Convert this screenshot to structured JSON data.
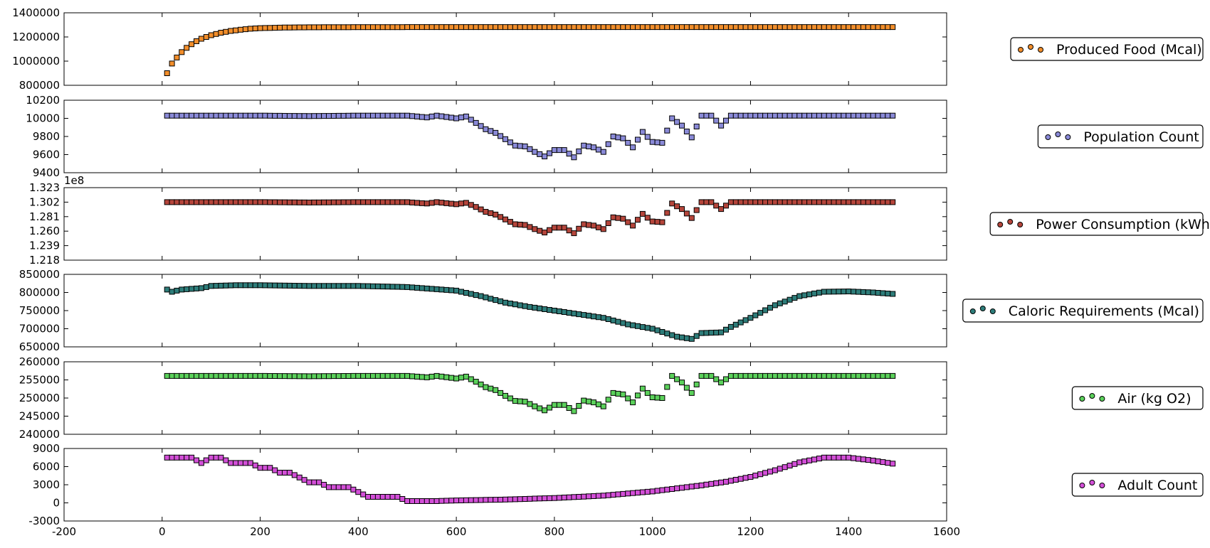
{
  "chart_data": {
    "type": "scatter",
    "xlim": [
      -200,
      1600
    ],
    "xticks": [
      "-200",
      "0",
      "200",
      "400",
      "600",
      "800",
      "1000",
      "1200",
      "1400",
      "1600"
    ],
    "xtick_values": [
      -200,
      0,
      200,
      400,
      600,
      800,
      1000,
      1200,
      1400,
      1600
    ],
    "grid": false,
    "legend_placement": "right",
    "panels": [
      {
        "name": "Produced Food (Mcal)",
        "color": "#f28e2b",
        "ylim": [
          800000,
          1400000
        ],
        "yticks": [
          "800000",
          "1000000",
          "1200000",
          "1400000"
        ],
        "ytick_values": [
          800000,
          1000000,
          1200000,
          1400000
        ],
        "offset_label": "",
        "points": [
          [
            10,
            900000
          ],
          [
            20,
            980000
          ],
          [
            30,
            1030000
          ],
          [
            40,
            1075000
          ],
          [
            50,
            1110000
          ],
          [
            60,
            1140000
          ],
          [
            70,
            1165000
          ],
          [
            80,
            1185000
          ],
          [
            90,
            1200000
          ],
          [
            100,
            1215000
          ],
          [
            120,
            1235000
          ],
          [
            140,
            1250000
          ],
          [
            160,
            1260000
          ],
          [
            180,
            1268000
          ],
          [
            200,
            1273000
          ],
          [
            250,
            1278000
          ],
          [
            300,
            1280000
          ],
          [
            400,
            1281000
          ],
          [
            600,
            1282000
          ],
          [
            800,
            1282000
          ],
          [
            1000,
            1282000
          ],
          [
            1200,
            1282000
          ],
          [
            1400,
            1282000
          ],
          [
            1490,
            1282000
          ]
        ]
      },
      {
        "name": "Population Count",
        "color": "#8a8ad8",
        "ylim": [
          9400,
          10200
        ],
        "yticks": [
          "9400",
          "9600",
          "9800",
          "10000",
          "10200"
        ],
        "ytick_values": [
          9400,
          9600,
          9800,
          10000,
          10200
        ],
        "offset_label": "",
        "points": [
          [
            10,
            10030
          ],
          [
            100,
            10030
          ],
          [
            200,
            10030
          ],
          [
            300,
            10025
          ],
          [
            400,
            10030
          ],
          [
            500,
            10030
          ],
          [
            540,
            10010
          ],
          [
            560,
            10030
          ],
          [
            600,
            10000
          ],
          [
            620,
            10020
          ],
          [
            640,
            9950
          ],
          [
            660,
            9880
          ],
          [
            680,
            9840
          ],
          [
            700,
            9770
          ],
          [
            720,
            9700
          ],
          [
            740,
            9690
          ],
          [
            760,
            9630
          ],
          [
            780,
            9580
          ],
          [
            800,
            9650
          ],
          [
            820,
            9650
          ],
          [
            840,
            9570
          ],
          [
            860,
            9700
          ],
          [
            880,
            9680
          ],
          [
            900,
            9630
          ],
          [
            920,
            9800
          ],
          [
            940,
            9780
          ],
          [
            960,
            9680
          ],
          [
            980,
            9850
          ],
          [
            1000,
            9740
          ],
          [
            1020,
            9730
          ],
          [
            1040,
            10000
          ],
          [
            1060,
            9920
          ],
          [
            1080,
            9790
          ],
          [
            1100,
            10030
          ],
          [
            1120,
            10030
          ],
          [
            1140,
            9920
          ],
          [
            1160,
            10030
          ],
          [
            1200,
            10030
          ],
          [
            1300,
            10030
          ],
          [
            1400,
            10030
          ],
          [
            1490,
            10030
          ]
        ]
      },
      {
        "name": "Power Consumption (kWh)",
        "color": "#b5453b",
        "ylim": [
          1.218,
          1.323
        ],
        "yticks": [
          "1.218",
          "1.239",
          "1.260",
          "1.281",
          "1.302",
          "1.323"
        ],
        "ytick_values": [
          1.218,
          1.239,
          1.26,
          1.281,
          1.302,
          1.323
        ],
        "offset_label": "1e8",
        "points": [
          [
            10,
            1.302
          ],
          [
            100,
            1.302
          ],
          [
            200,
            1.302
          ],
          [
            300,
            1.3015
          ],
          [
            400,
            1.302
          ],
          [
            500,
            1.302
          ],
          [
            540,
            1.3
          ],
          [
            560,
            1.302
          ],
          [
            600,
            1.299
          ],
          [
            620,
            1.301
          ],
          [
            640,
            1.295
          ],
          [
            660,
            1.288
          ],
          [
            680,
            1.284
          ],
          [
            700,
            1.277
          ],
          [
            720,
            1.27
          ],
          [
            740,
            1.269
          ],
          [
            760,
            1.263
          ],
          [
            780,
            1.258
          ],
          [
            800,
            1.265
          ],
          [
            820,
            1.265
          ],
          [
            840,
            1.257
          ],
          [
            860,
            1.27
          ],
          [
            880,
            1.268
          ],
          [
            900,
            1.263
          ],
          [
            920,
            1.28
          ],
          [
            940,
            1.278
          ],
          [
            960,
            1.268
          ],
          [
            980,
            1.285
          ],
          [
            1000,
            1.274
          ],
          [
            1020,
            1.273
          ],
          [
            1040,
            1.3
          ],
          [
            1060,
            1.292
          ],
          [
            1080,
            1.279
          ],
          [
            1100,
            1.302
          ],
          [
            1120,
            1.302
          ],
          [
            1140,
            1.292
          ],
          [
            1160,
            1.302
          ],
          [
            1200,
            1.302
          ],
          [
            1300,
            1.302
          ],
          [
            1400,
            1.302
          ],
          [
            1490,
            1.302
          ]
        ]
      },
      {
        "name": "Caloric Requirements (Mcal)",
        "color": "#2e7d7a",
        "ylim": [
          650000,
          850000
        ],
        "yticks": [
          "650000",
          "700000",
          "750000",
          "800000",
          "850000"
        ],
        "ytick_values": [
          650000,
          700000,
          750000,
          800000,
          850000
        ],
        "offset_label": "",
        "points": [
          [
            10,
            808000
          ],
          [
            20,
            802000
          ],
          [
            40,
            808000
          ],
          [
            60,
            810000
          ],
          [
            80,
            812000
          ],
          [
            100,
            818000
          ],
          [
            150,
            820000
          ],
          [
            200,
            820000
          ],
          [
            300,
            818000
          ],
          [
            400,
            818000
          ],
          [
            500,
            815000
          ],
          [
            600,
            805000
          ],
          [
            650,
            790000
          ],
          [
            700,
            772000
          ],
          [
            750,
            760000
          ],
          [
            800,
            750000
          ],
          [
            850,
            740000
          ],
          [
            900,
            730000
          ],
          [
            950,
            712000
          ],
          [
            1000,
            700000
          ],
          [
            1050,
            678000
          ],
          [
            1080,
            672000
          ],
          [
            1100,
            688000
          ],
          [
            1140,
            690000
          ],
          [
            1160,
            705000
          ],
          [
            1200,
            730000
          ],
          [
            1250,
            765000
          ],
          [
            1300,
            790000
          ],
          [
            1350,
            802000
          ],
          [
            1400,
            803000
          ],
          [
            1450,
            800000
          ],
          [
            1490,
            796000
          ]
        ]
      },
      {
        "name": "Air (kg O2)",
        "color": "#5bd15b",
        "ylim": [
          240000,
          260000
        ],
        "yticks": [
          "240000",
          "245000",
          "250000",
          "255000",
          "260000"
        ],
        "ytick_values": [
          240000,
          245000,
          250000,
          255000,
          260000
        ],
        "offset_label": "",
        "points": [
          [
            10,
            256100
          ],
          [
            100,
            256100
          ],
          [
            200,
            256100
          ],
          [
            300,
            256000
          ],
          [
            400,
            256100
          ],
          [
            500,
            256100
          ],
          [
            540,
            255700
          ],
          [
            560,
            256100
          ],
          [
            600,
            255400
          ],
          [
            620,
            255900
          ],
          [
            640,
            254500
          ],
          [
            660,
            253000
          ],
          [
            680,
            252200
          ],
          [
            700,
            250600
          ],
          [
            720,
            249200
          ],
          [
            740,
            249000
          ],
          [
            760,
            247700
          ],
          [
            780,
            246600
          ],
          [
            800,
            248100
          ],
          [
            820,
            248100
          ],
          [
            840,
            246400
          ],
          [
            860,
            249300
          ],
          [
            880,
            248800
          ],
          [
            900,
            247700
          ],
          [
            920,
            251400
          ],
          [
            940,
            251000
          ],
          [
            960,
            248800
          ],
          [
            980,
            252600
          ],
          [
            1000,
            250200
          ],
          [
            1020,
            250000
          ],
          [
            1040,
            256100
          ],
          [
            1060,
            254300
          ],
          [
            1080,
            251400
          ],
          [
            1100,
            256100
          ],
          [
            1120,
            256100
          ],
          [
            1140,
            254300
          ],
          [
            1160,
            256100
          ],
          [
            1200,
            256100
          ],
          [
            1300,
            256100
          ],
          [
            1400,
            256100
          ],
          [
            1490,
            256100
          ]
        ]
      },
      {
        "name": "Adult Count",
        "color": "#d34fd8",
        "ylim": [
          -3000,
          9000
        ],
        "yticks": [
          "-3000",
          "0",
          "3000",
          "6000",
          "9000"
        ],
        "ytick_values": [
          -3000,
          0,
          3000,
          6000,
          9000
        ],
        "offset_label": "",
        "points": [
          [
            10,
            7500
          ],
          [
            60,
            7500
          ],
          [
            80,
            6600
          ],
          [
            100,
            7500
          ],
          [
            120,
            7500
          ],
          [
            140,
            6600
          ],
          [
            180,
            6600
          ],
          [
            200,
            5800
          ],
          [
            220,
            5800
          ],
          [
            240,
            5000
          ],
          [
            260,
            5000
          ],
          [
            280,
            4200
          ],
          [
            300,
            3400
          ],
          [
            320,
            3400
          ],
          [
            340,
            2600
          ],
          [
            380,
            2600
          ],
          [
            400,
            1800
          ],
          [
            420,
            1000
          ],
          [
            480,
            1000
          ],
          [
            500,
            300
          ],
          [
            560,
            300
          ],
          [
            600,
            400
          ],
          [
            700,
            550
          ],
          [
            800,
            800
          ],
          [
            900,
            1200
          ],
          [
            1000,
            1900
          ],
          [
            1100,
            2900
          ],
          [
            1150,
            3500
          ],
          [
            1200,
            4300
          ],
          [
            1250,
            5400
          ],
          [
            1300,
            6700
          ],
          [
            1350,
            7500
          ],
          [
            1400,
            7500
          ],
          [
            1450,
            7000
          ],
          [
            1490,
            6500
          ]
        ]
      }
    ]
  }
}
